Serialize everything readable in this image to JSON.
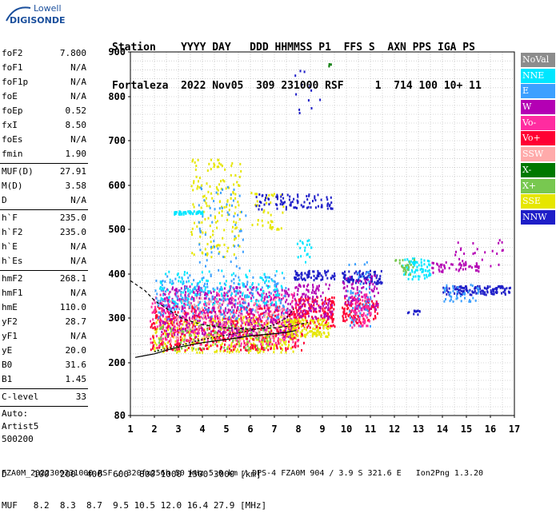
{
  "logo": {
    "top": "Lowell",
    "bottom": "DIGISONDE"
  },
  "header": {
    "line1": "Station    YYYY DAY   DDD HHMMSS P1  FFS S  AXN PPS IGA PS",
    "line2": "Fortaleza  2022 Nov05  309 231000 RSF     1  714 100 10+ 11"
  },
  "params": {
    "group1": [
      {
        "name": "foF2",
        "value": "7.800"
      },
      {
        "name": "foF1",
        "value": "N/A"
      },
      {
        "name": "foF1p",
        "value": "N/A"
      },
      {
        "name": "foE",
        "value": "N/A"
      },
      {
        "name": "foEp",
        "value": "0.52"
      },
      {
        "name": "fxI",
        "value": "8.50"
      },
      {
        "name": "foEs",
        "value": "N/A"
      },
      {
        "name": "fmin",
        "value": "1.90"
      }
    ],
    "group2": [
      {
        "name": "MUF(D)",
        "value": "27.91"
      },
      {
        "name": "M(D)",
        "value": "3.58"
      },
      {
        "name": "D",
        "value": "N/A"
      }
    ],
    "group3": [
      {
        "name": "h`F",
        "value": "235.0"
      },
      {
        "name": "h`F2",
        "value": "235.0"
      },
      {
        "name": "h`E",
        "value": "N/A"
      },
      {
        "name": "h`Es",
        "value": "N/A"
      }
    ],
    "group4": [
      {
        "name": "hmF2",
        "value": "268.1"
      },
      {
        "name": "hmF1",
        "value": "N/A"
      },
      {
        "name": "hmE",
        "value": "110.0"
      },
      {
        "name": "yF2",
        "value": "28.7"
      },
      {
        "name": "yF1",
        "value": "N/A"
      },
      {
        "name": "yE",
        "value": "20.0"
      },
      {
        "name": "B0",
        "value": "31.6"
      },
      {
        "name": "B1",
        "value": "1.45"
      }
    ],
    "group5": [
      {
        "name": "C-level",
        "value": "33"
      }
    ],
    "scaler": [
      "Auto:",
      "Artist5",
      "500200"
    ]
  },
  "legend": [
    {
      "label": "NoVal",
      "color": "#8c8c8c"
    },
    {
      "label": "NNE",
      "color": "#00e6ff"
    },
    {
      "label": "E",
      "color": "#3ca0ff"
    },
    {
      "label": "W",
      "color": "#b400b4"
    },
    {
      "label": "Vo-",
      "color": "#ff2ca0"
    },
    {
      "label": "Vo+",
      "color": "#ff0033"
    },
    {
      "label": "SSW",
      "color": "#ffaaaa"
    },
    {
      "label": "X-",
      "color": "#007800"
    },
    {
      "label": "X+",
      "color": "#78c850"
    },
    {
      "label": "SSE",
      "color": "#e6e600"
    },
    {
      "label": "NNW",
      "color": "#1e1ec8"
    }
  ],
  "bottom": {
    "d_line": "D     100  200  400  600  800 1000 1500 3000 [km]",
    "muf_line": "MUF   8.2  8.3  8.7  9.5 10.5 12.0 16.4 27.9 [MHz]",
    "footer": "FZA0M_2022309231000.RSF / 320fx256h 50 kHz 5.0 km / DPS-4 FZA0M 904 / 3.9 S 321.6 E   Ion2Png 1.3.20"
  },
  "chart_data": {
    "type": "scatter",
    "xlim": [
      1,
      17
    ],
    "ylim": [
      80,
      900
    ],
    "xticks": [
      1,
      2,
      3,
      4,
      5,
      6,
      7,
      8,
      9,
      10,
      11,
      12,
      13,
      14,
      15,
      16,
      17
    ],
    "yticks": [
      80,
      200,
      300,
      400,
      500,
      600,
      700,
      800,
      900
    ],
    "grid": true,
    "trace_hprime": {
      "x": [
        1.2,
        1.6,
        2.0,
        2.5,
        3.0,
        4.0,
        5.0,
        6.0,
        7.0,
        7.5,
        7.9
      ],
      "y": [
        212,
        216,
        220,
        228,
        235,
        245,
        252,
        260,
        265,
        268,
        272
      ]
    },
    "trace_dashed": {
      "x": [
        1.0,
        1.6,
        2.0,
        2.6,
        3.2,
        4.0,
        5.0,
        6.0,
        7.0,
        7.8,
        8.4
      ],
      "y": [
        385,
        363,
        340,
        318,
        298,
        285,
        278,
        275,
        278,
        283,
        290
      ]
    },
    "trace_profile": {
      "x": [
        2.0,
        3.0,
        4.0,
        5.0,
        6.0,
        7.0,
        7.5,
        7.8
      ],
      "y": [
        225,
        238,
        252,
        262,
        272,
        285,
        300,
        320
      ]
    },
    "clusters": [
      {
        "dir": "SSE",
        "x": [
          1.9,
          7.9
        ],
        "y": [
          225,
          305
        ],
        "n": 420
      },
      {
        "dir": "Vo+",
        "x": [
          1.8,
          8.2
        ],
        "y": [
          230,
          330
        ],
        "n": 520
      },
      {
        "dir": "Vo-",
        "x": [
          1.8,
          8.0
        ],
        "y": [
          240,
          360
        ],
        "n": 380
      },
      {
        "dir": "W",
        "x": [
          2.2,
          7.8
        ],
        "y": [
          260,
          375
        ],
        "n": 460
      },
      {
        "dir": "E",
        "x": [
          2.0,
          7.5
        ],
        "y": [
          300,
          400
        ],
        "n": 220
      },
      {
        "dir": "NNE",
        "x": [
          2.2,
          7.3
        ],
        "y": [
          330,
          410
        ],
        "n": 160
      },
      {
        "dir": "SSW",
        "x": [
          2.5,
          7.5
        ],
        "y": [
          250,
          350
        ],
        "n": 120
      },
      {
        "dir": "X+",
        "x": [
          2.0,
          7.0
        ],
        "y": [
          230,
          290
        ],
        "n": 80
      },
      {
        "dir": "SSE",
        "x": [
          3.5,
          5.6
        ],
        "y": [
          440,
          660
        ],
        "n": 160
      },
      {
        "dir": "E",
        "x": [
          3.8,
          5.8
        ],
        "y": [
          400,
          600
        ],
        "n": 60
      },
      {
        "dir": "SSE",
        "x": [
          6.0,
          7.4
        ],
        "y": [
          500,
          590
        ],
        "n": 40
      },
      {
        "dir": "NNE",
        "x": [
          2.8,
          4.0
        ],
        "y": [
          536,
          544
        ],
        "n": 40
      },
      {
        "dir": "NNW",
        "x": [
          6.2,
          9.4
        ],
        "y": [
          548,
          582
        ],
        "n": 90
      },
      {
        "dir": "NNW",
        "x": [
          7.8,
          9.5
        ],
        "y": [
          388,
          410
        ],
        "n": 70
      },
      {
        "dir": "Vo+",
        "x": [
          7.8,
          9.5
        ],
        "y": [
          280,
          350
        ],
        "n": 160
      },
      {
        "dir": "SSE",
        "x": [
          7.5,
          9.3
        ],
        "y": [
          260,
          300
        ],
        "n": 120
      },
      {
        "dir": "W",
        "x": [
          7.8,
          9.4
        ],
        "y": [
          300,
          380
        ],
        "n": 110
      },
      {
        "dir": "Vo+",
        "x": [
          9.8,
          11.3
        ],
        "y": [
          290,
          350
        ],
        "n": 120
      },
      {
        "dir": "NNW",
        "x": [
          9.8,
          11.5
        ],
        "y": [
          380,
          410
        ],
        "n": 90
      },
      {
        "dir": "W",
        "x": [
          9.8,
          11.3
        ],
        "y": [
          320,
          400
        ],
        "n": 90
      },
      {
        "dir": "E",
        "x": [
          10.0,
          11.0
        ],
        "y": [
          280,
          430
        ],
        "n": 60
      },
      {
        "dir": "Vo-",
        "x": [
          10.2,
          11.0
        ],
        "y": [
          280,
          360
        ],
        "n": 60
      },
      {
        "dir": "NNE",
        "x": [
          12.3,
          13.5
        ],
        "y": [
          390,
          440
        ],
        "n": 70
      },
      {
        "dir": "X+",
        "x": [
          12.0,
          12.8
        ],
        "y": [
          400,
          435
        ],
        "n": 25
      },
      {
        "dir": "W",
        "x": [
          13.5,
          15.5
        ],
        "y": [
          405,
          430
        ],
        "n": 50
      },
      {
        "dir": "NNW",
        "x": [
          14.0,
          16.8
        ],
        "y": [
          355,
          375
        ],
        "n": 120
      },
      {
        "dir": "E",
        "x": [
          14.0,
          15.5
        ],
        "y": [
          340,
          380
        ],
        "n": 40
      },
      {
        "dir": "W",
        "x": [
          14.5,
          16.5
        ],
        "y": [
          420,
          480
        ],
        "n": 25
      },
      {
        "dir": "NNW",
        "x": [
          12.5,
          13.2
        ],
        "y": [
          310,
          320
        ],
        "n": 12
      },
      {
        "dir": "NNW",
        "x": [
          7.8,
          9.2
        ],
        "y": [
          760,
          860
        ],
        "n": 12
      },
      {
        "dir": "NNE",
        "x": [
          7.9,
          8.6
        ],
        "y": [
          420,
          480
        ],
        "n": 20
      },
      {
        "dir": "X-",
        "x": [
          9.2,
          9.35
        ],
        "y": [
          870,
          878
        ],
        "n": 3
      }
    ]
  }
}
